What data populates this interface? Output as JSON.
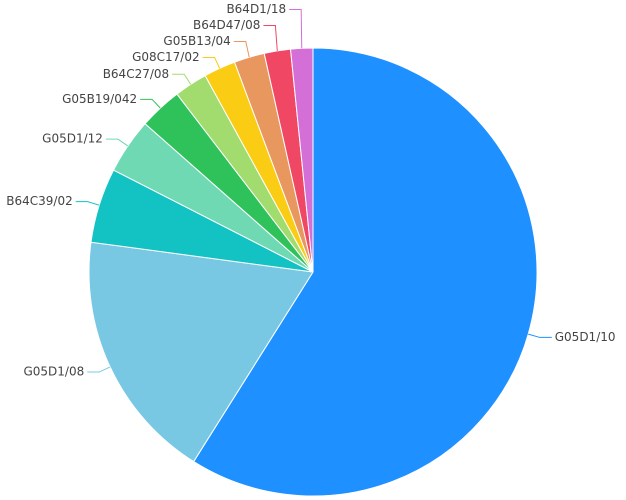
{
  "chart_data": {
    "type": "pie",
    "categories": [
      "G05D1/10",
      "G05D1/08",
      "B64C39/02",
      "G05D1/12",
      "G05B19/042",
      "B64C27/08",
      "G08C17/02",
      "G05B13/04",
      "B64D47/08",
      "B64D1/18"
    ],
    "values": [
      59,
      18.2,
      5.4,
      4.0,
      3.1,
      2.4,
      2.3,
      2.2,
      1.9,
      1.6
    ],
    "colors": [
      "#1e90ff",
      "#78c8e4",
      "#13c2c2",
      "#6fd9b4",
      "#2fc25b",
      "#a2dc6f",
      "#facc14",
      "#e8975f",
      "#f04864",
      "#d36fd6"
    ]
  }
}
